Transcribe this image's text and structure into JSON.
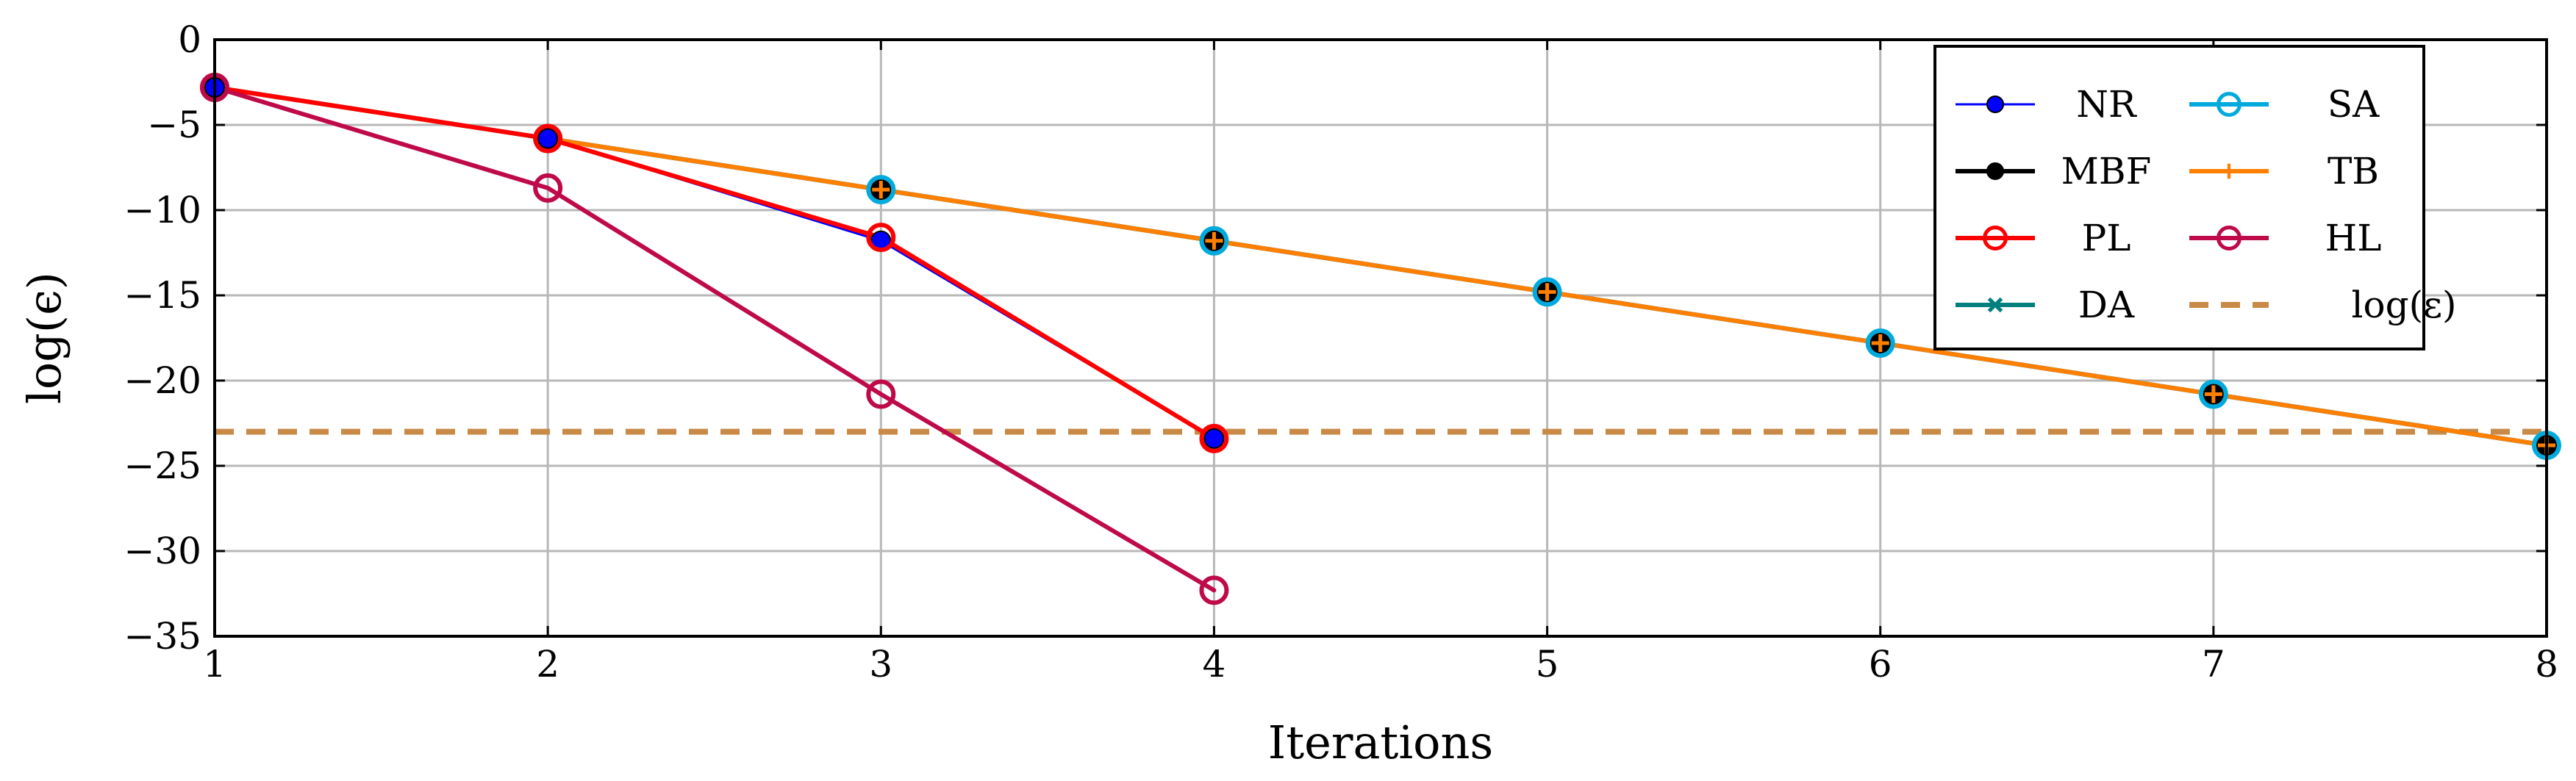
{
  "chart_data": {
    "type": "line",
    "xlabel": "Iterations",
    "ylabel": "log(ϵ)",
    "xlim": [
      1,
      8
    ],
    "ylim": [
      -35,
      0
    ],
    "xticks": [
      1,
      2,
      3,
      4,
      5,
      6,
      7,
      8
    ],
    "yticks": [
      0,
      -5,
      -10,
      -15,
      -20,
      -25,
      -30,
      -35
    ],
    "xtick_labels": [
      "1",
      "2",
      "3",
      "4",
      "5",
      "6",
      "7",
      "8"
    ],
    "ytick_labels": [
      "0",
      "−5",
      "−10",
      "−15",
      "−20",
      "−25",
      "−30",
      "−35"
    ],
    "grid": true,
    "legend_position": "top-right",
    "threshold": {
      "name": "log(ε)",
      "y": -23,
      "color": "#c98a47",
      "style": "dashed"
    },
    "series": [
      {
        "name": "NR",
        "color": "#0000ff",
        "marker": "filled-circle",
        "x": [
          1,
          2,
          3,
          4
        ],
        "y": [
          -2.8,
          -5.8,
          -11.8,
          -23.4
        ]
      },
      {
        "name": "MBF",
        "color": "#000000",
        "marker": "filled-circle",
        "x": [
          1,
          2,
          3,
          4,
          5,
          6,
          7,
          8
        ],
        "y": [
          -2.8,
          -5.8,
          -8.8,
          -11.8,
          -14.8,
          -17.8,
          -20.8,
          -23.8
        ]
      },
      {
        "name": "PL",
        "color": "#ff0000",
        "marker": "open-circle",
        "x": [
          1,
          2,
          3,
          4
        ],
        "y": [
          -2.8,
          -5.8,
          -11.6,
          -23.4
        ]
      },
      {
        "name": "DA",
        "color": "#007f7f",
        "marker": "x",
        "x": [
          1,
          2,
          3,
          4,
          5,
          6,
          7,
          8
        ],
        "y": [
          -2.8,
          -5.8,
          -8.8,
          -11.8,
          -14.8,
          -17.8,
          -20.8,
          -23.8
        ]
      },
      {
        "name": "SA",
        "color": "#00aadd",
        "marker": "open-circle",
        "x": [
          1,
          2,
          3,
          4,
          5,
          6,
          7,
          8
        ],
        "y": [
          -2.8,
          -5.8,
          -8.8,
          -11.8,
          -14.8,
          -17.8,
          -20.8,
          -23.8
        ]
      },
      {
        "name": "TB",
        "color": "#ff8000",
        "marker": "plus",
        "x": [
          1,
          2,
          3,
          4,
          5,
          6,
          7,
          8
        ],
        "y": [
          -2.8,
          -5.8,
          -8.8,
          -11.8,
          -14.8,
          -17.8,
          -20.8,
          -23.8
        ]
      },
      {
        "name": "HL",
        "color": "#bf0a4a",
        "marker": "open-circle",
        "x": [
          1,
          2,
          3,
          4
        ],
        "y": [
          -2.8,
          -8.7,
          -20.8,
          -32.3
        ]
      }
    ]
  }
}
